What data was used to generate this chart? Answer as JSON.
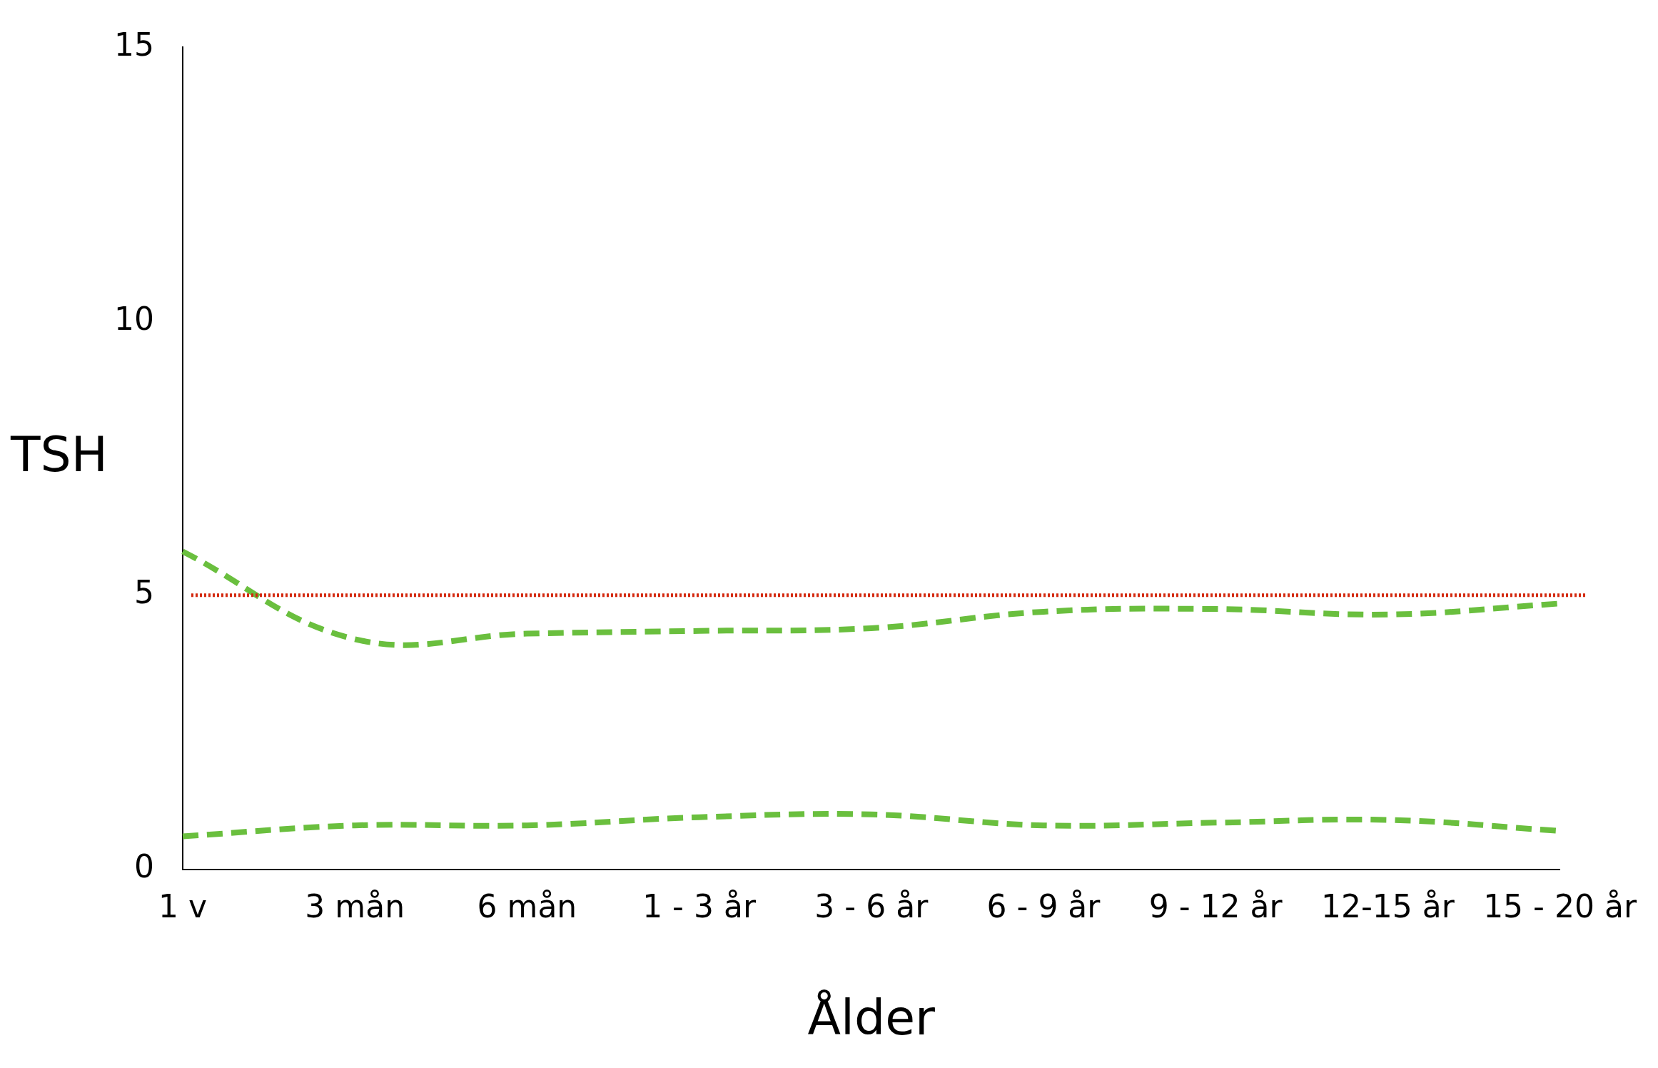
{
  "chart_data": {
    "type": "line",
    "xlabel": "Ålder",
    "ylabel": "TSH",
    "categories": [
      "1 v",
      "3 mån",
      "6 mån",
      "1 - 3 år",
      "3 - 6 år",
      "6 - 9 år",
      "9 - 12 år",
      "12-15 år",
      "15 - 20 år"
    ],
    "series": [
      {
        "color": "#6abf3e",
        "values": [
          5.8,
          4.2,
          4.3,
          4.35,
          4.4,
          4.7,
          4.75,
          4.65,
          4.85
        ]
      },
      {
        "color": "#6abf3e",
        "values": [
          0.6,
          0.8,
          0.8,
          0.95,
          1.0,
          0.8,
          0.85,
          0.9,
          0.7
        ]
      }
    ],
    "ylim": [
      0,
      15
    ],
    "yticks": [
      0,
      5,
      10,
      15
    ],
    "grid": false,
    "legend": false,
    "marker": "none",
    "line_style": "dashed",
    "ref_lines": [
      {
        "axis": "y",
        "value": 5,
        "color": "#d42a10",
        "line_style": "dotted"
      }
    ]
  }
}
